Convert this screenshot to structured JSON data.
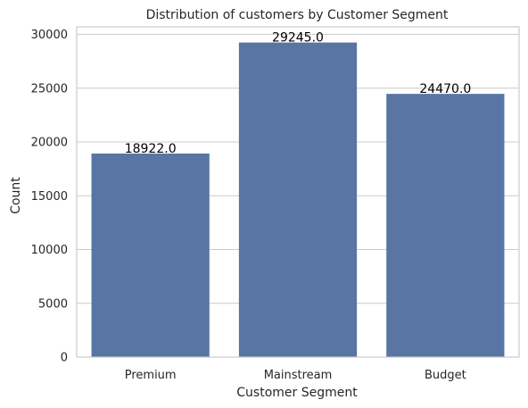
{
  "chart_data": {
    "type": "bar",
    "title": "Distribution of customers by Customer Segment",
    "xlabel": "Customer Segment",
    "ylabel": "Count",
    "categories": [
      "Premium",
      "Mainstream",
      "Budget"
    ],
    "values": [
      18922.0,
      29245.0,
      24470.0
    ],
    "data_labels": [
      "18922.0",
      "29245.0",
      "24470.0"
    ],
    "yticks": [
      0,
      5000,
      10000,
      15000,
      20000,
      25000,
      30000
    ],
    "ylim": [
      0,
      30707
    ],
    "grid": true,
    "legend": "none",
    "bar_color": "#5975a4"
  }
}
